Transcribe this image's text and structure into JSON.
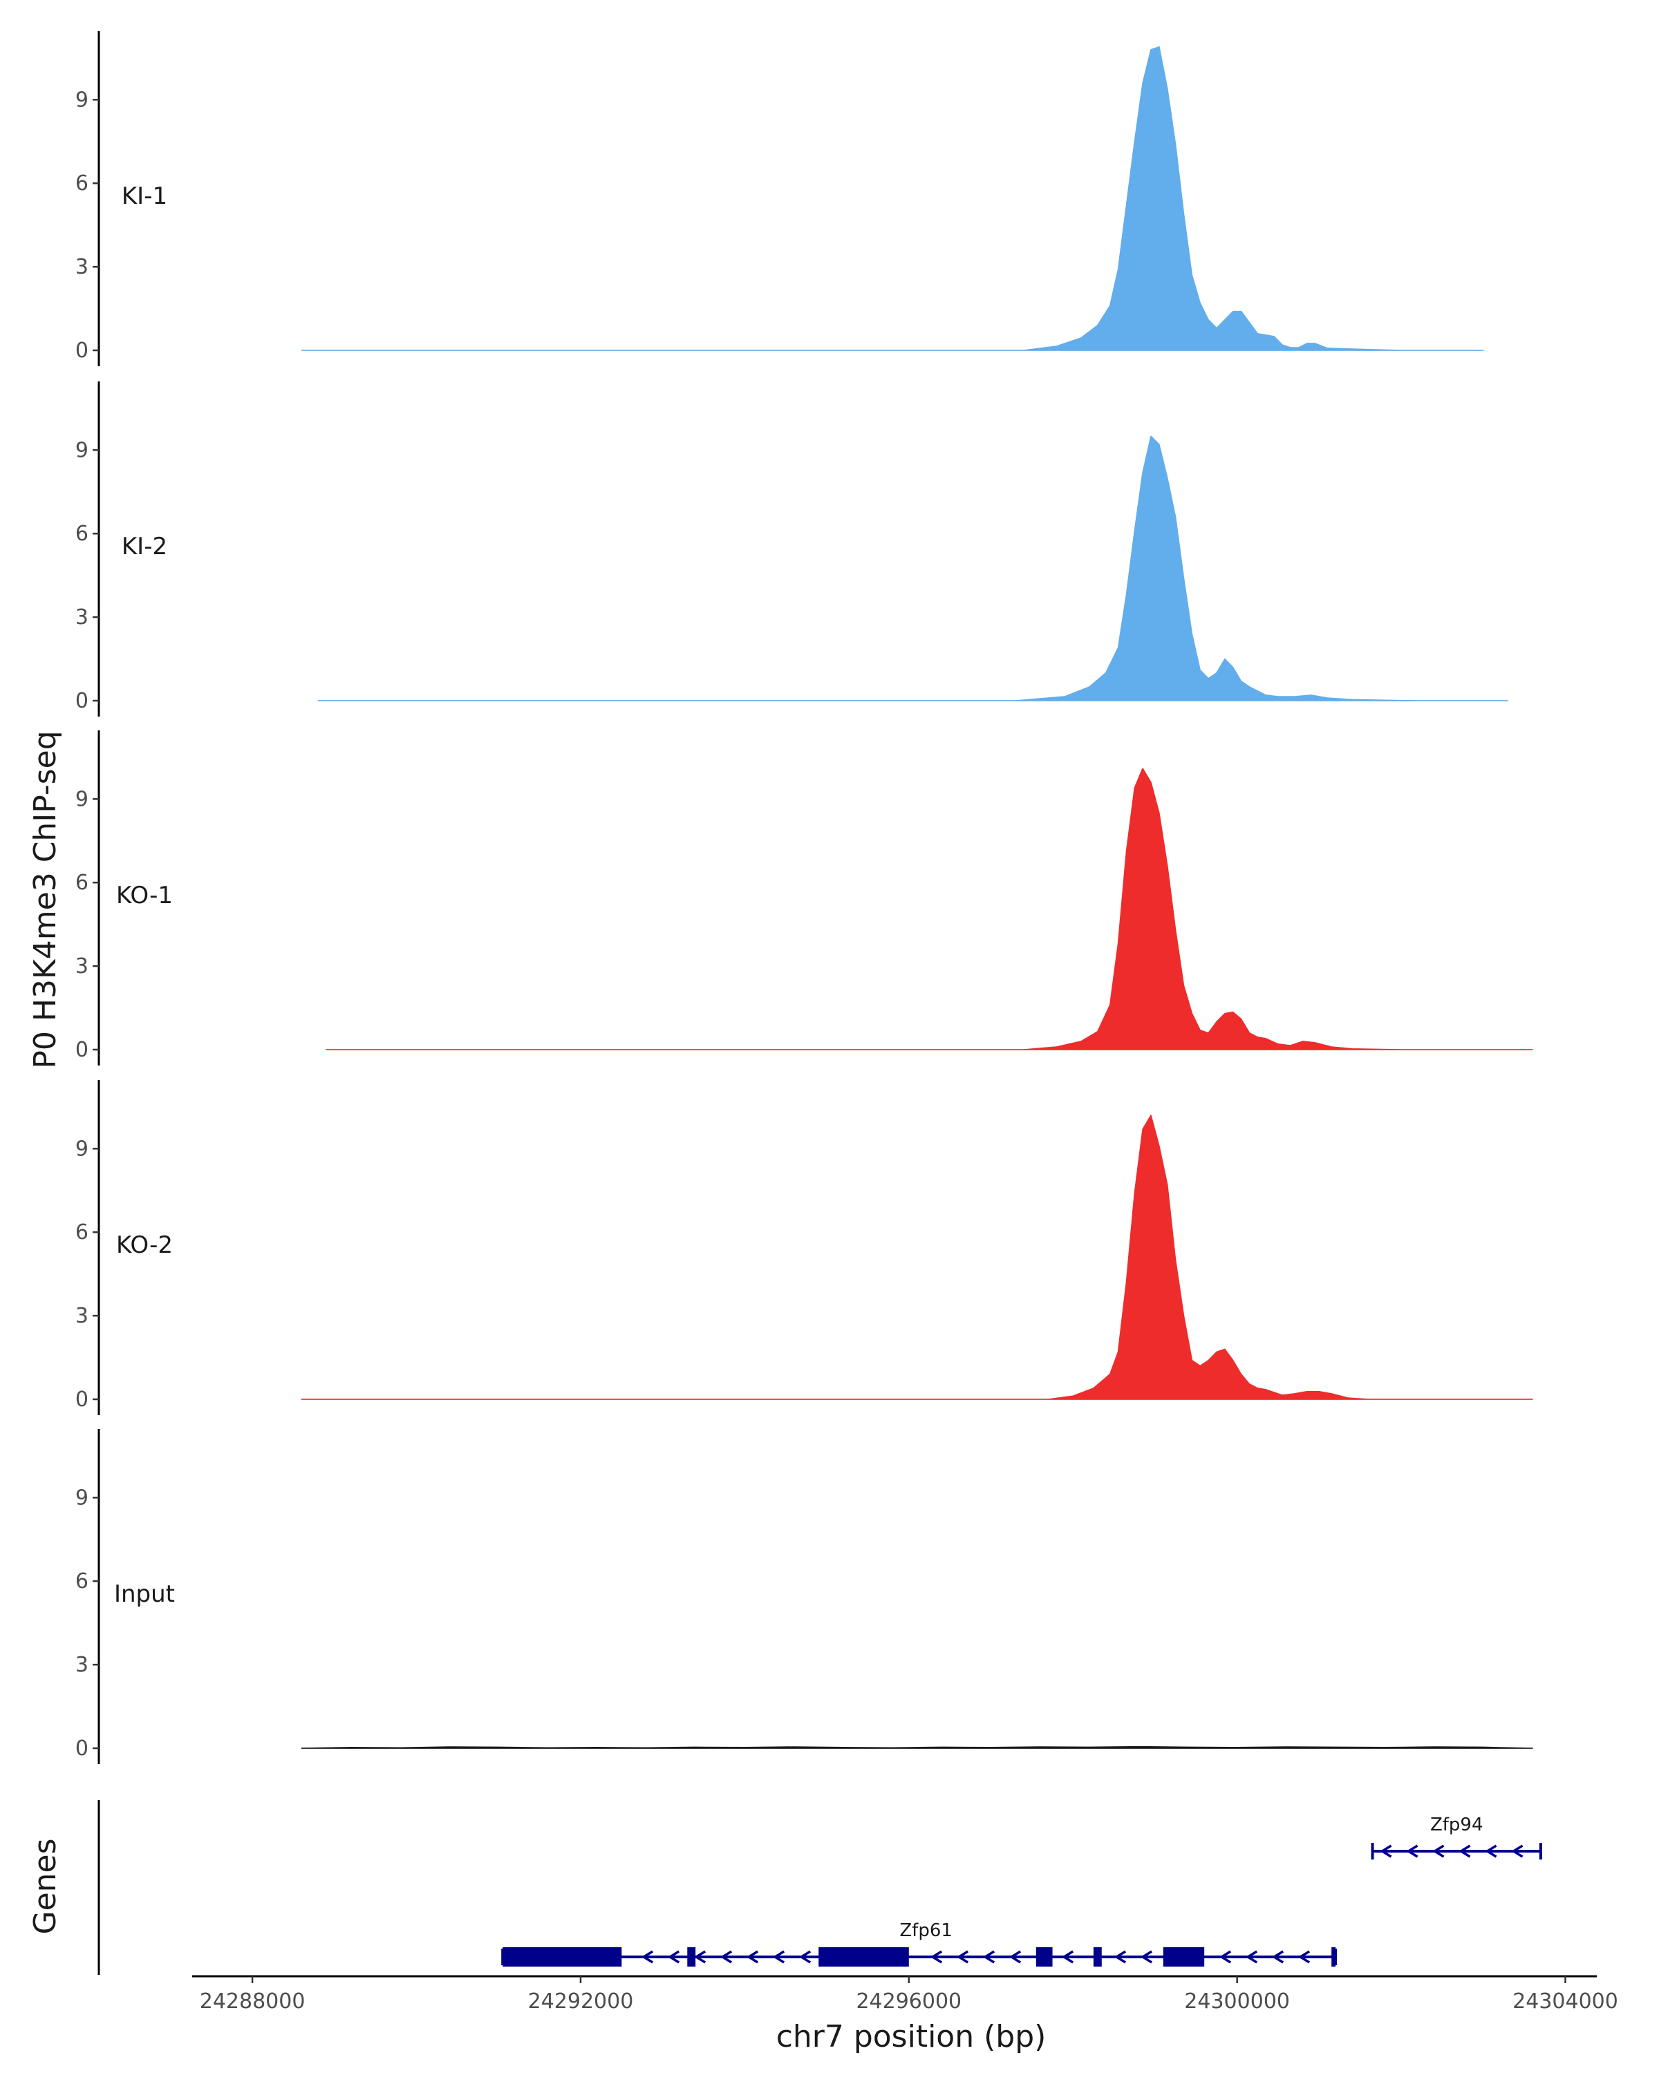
{
  "chart_data": {
    "type": "area",
    "ylabel": "P0 H3K4me3 ChIP-seq",
    "xlabel": "chr7 position (bp)",
    "genes_label": "Genes",
    "ylim": [
      0,
      11.6
    ],
    "yticks": [
      0,
      3,
      6,
      9
    ],
    "xlim": [
      24287300,
      24304400
    ],
    "xticks": [
      24288000,
      24292000,
      24296000,
      24300000,
      24304000
    ],
    "xtick_labels": [
      "24288000",
      "24292000",
      "24296000",
      "24300000",
      "24304000"
    ],
    "tracks": [
      {
        "name": "KI-1",
        "color": "#62ADEC",
        "x": [
          24288600,
          24297400,
          24297800,
          24298100,
          24298300,
          24298450,
          24298550,
          24298650,
          24298750,
          24298850,
          24298950,
          24299050,
          24299150,
          24299250,
          24299350,
          24299450,
          24299550,
          24299650,
          24299750,
          24299850,
          24299950,
          24300050,
          24300150,
          24300250,
          24300350,
          24300450,
          24300550,
          24300650,
          24300750,
          24300850,
          24300950,
          24301100,
          24301400,
          24302000,
          24303000
        ],
        "y": [
          0,
          0,
          0.15,
          0.45,
          0.9,
          1.6,
          2.9,
          5.2,
          7.5,
          9.6,
          10.8,
          10.9,
          9.4,
          7.4,
          4.9,
          2.7,
          1.7,
          1.1,
          0.8,
          1.1,
          1.4,
          1.4,
          1.0,
          0.6,
          0.55,
          0.5,
          0.2,
          0.1,
          0.1,
          0.25,
          0.25,
          0.08,
          0.05,
          0,
          0
        ]
      },
      {
        "name": "KI-2",
        "color": "#62ADEC",
        "x": [
          24288800,
          24297300,
          24297900,
          24298200,
          24298400,
          24298550,
          24298650,
          24298750,
          24298850,
          24298950,
          24299050,
          24299150,
          24299250,
          24299350,
          24299450,
          24299550,
          24299650,
          24299750,
          24299850,
          24299950,
          24300050,
          24300150,
          24300250,
          24300350,
          24300500,
          24300700,
          24300900,
          24301100,
          24301400,
          24302200,
          24303300
        ],
        "y": [
          0,
          0,
          0.15,
          0.5,
          1.0,
          1.9,
          3.8,
          6.1,
          8.2,
          9.5,
          9.2,
          8.0,
          6.6,
          4.4,
          2.4,
          1.1,
          0.8,
          1.0,
          1.5,
          1.2,
          0.7,
          0.5,
          0.35,
          0.2,
          0.15,
          0.15,
          0.2,
          0.1,
          0.04,
          0,
          0
        ]
      },
      {
        "name": "KO-1",
        "color": "#EE2C2C",
        "x": [
          24288900,
          24297400,
          24297800,
          24298100,
          24298300,
          24298450,
          24298550,
          24298650,
          24298750,
          24298850,
          24298950,
          24299050,
          24299150,
          24299250,
          24299350,
          24299450,
          24299550,
          24299650,
          24299750,
          24299850,
          24299950,
          24300050,
          24300150,
          24300250,
          24300350,
          24300500,
          24300650,
          24300800,
          24300950,
          24301150,
          24301400,
          24302000,
          24303600
        ],
        "y": [
          0,
          0,
          0.1,
          0.3,
          0.65,
          1.6,
          3.8,
          7.1,
          9.4,
          10.1,
          9.6,
          8.5,
          6.6,
          4.3,
          2.3,
          1.3,
          0.7,
          0.6,
          1.0,
          1.3,
          1.35,
          1.1,
          0.6,
          0.45,
          0.4,
          0.2,
          0.15,
          0.3,
          0.25,
          0.1,
          0.03,
          0,
          0
        ]
      },
      {
        "name": "KO-2",
        "color": "#EE2C2C",
        "x": [
          24288600,
          24297700,
          24298000,
          24298250,
          24298450,
          24298550,
          24298650,
          24298750,
          24298850,
          24298950,
          24299050,
          24299150,
          24299250,
          24299350,
          24299450,
          24299550,
          24299650,
          24299750,
          24299850,
          24299950,
          24300050,
          24300150,
          24300250,
          24300350,
          24300450,
          24300550,
          24300700,
          24300850,
          24301000,
          24301150,
          24301350,
          24301600,
          24302300,
          24303600
        ],
        "y": [
          0,
          0,
          0.12,
          0.4,
          0.9,
          1.7,
          4.2,
          7.4,
          9.7,
          10.2,
          9.1,
          7.7,
          5.0,
          3.0,
          1.4,
          1.2,
          1.4,
          1.7,
          1.8,
          1.4,
          0.9,
          0.55,
          0.4,
          0.35,
          0.25,
          0.15,
          0.2,
          0.28,
          0.28,
          0.2,
          0.05,
          0,
          0,
          0
        ]
      },
      {
        "name": "Input",
        "color": "#1A1A1A",
        "x": [
          24288600,
          24289200,
          24289800,
          24290400,
          24291000,
          24291600,
          24292200,
          24292800,
          24293400,
          24294000,
          24294600,
          24295200,
          24295800,
          24296400,
          24297000,
          24297600,
          24298200,
          24298800,
          24299400,
          24300000,
          24300600,
          24301200,
          24301800,
          24302400,
          24303000,
          24303600
        ],
        "y": [
          0,
          0.03,
          0.02,
          0.05,
          0.04,
          0.02,
          0.03,
          0.02,
          0.04,
          0.03,
          0.05,
          0.03,
          0.02,
          0.04,
          0.03,
          0.05,
          0.04,
          0.06,
          0.04,
          0.03,
          0.05,
          0.04,
          0.03,
          0.05,
          0.04,
          0
        ]
      }
    ],
    "genes": [
      {
        "name": "Zfp61",
        "strand": "-",
        "start": 24291050,
        "end": 24301200,
        "exons": [
          [
            24291050,
            24292500
          ],
          [
            24293300,
            24293400
          ],
          [
            24294900,
            24296000
          ],
          [
            24297550,
            24297750
          ],
          [
            24298250,
            24298350
          ],
          [
            24299100,
            24299600
          ],
          [
            24301150,
            24301200
          ]
        ]
      },
      {
        "name": "Zfp94",
        "strand": "-",
        "start": 24301650,
        "end": 24303700,
        "exons": []
      }
    ],
    "gene_color": "#00008B",
    "grid": false,
    "legend": "none"
  }
}
